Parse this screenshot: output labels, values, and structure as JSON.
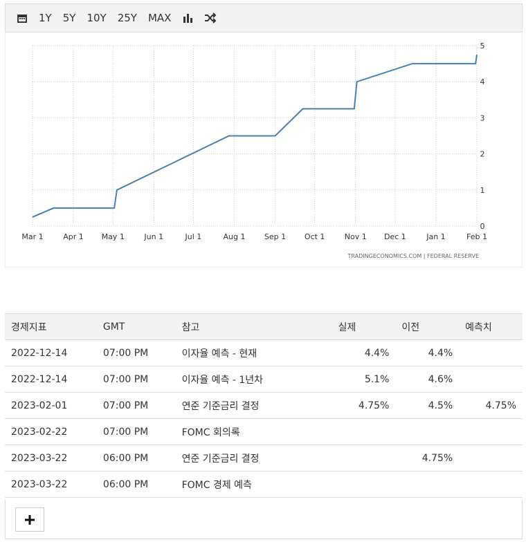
{
  "toolbar": {
    "ranges": [
      "1Y",
      "5Y",
      "10Y",
      "25Y",
      "MAX"
    ]
  },
  "chart_data": {
    "type": "line",
    "color": "#4a7fb0",
    "x": [
      0,
      16,
      62,
      64,
      149,
      184,
      205,
      244,
      246,
      288,
      336,
      337
    ],
    "values": [
      0.25,
      0.5,
      0.5,
      1.0,
      2.5,
      2.5,
      3.25,
      3.25,
      4.0,
      4.5,
      4.5,
      4.75
    ],
    "xlim": [
      0,
      337
    ],
    "xticks": [
      {
        "value": 0,
        "label": "Mar 1"
      },
      {
        "value": 31,
        "label": "Apr 1"
      },
      {
        "value": 61,
        "label": "May 1"
      },
      {
        "value": 92,
        "label": "Jun 1"
      },
      {
        "value": 122,
        "label": "Jul 1"
      },
      {
        "value": 153,
        "label": "Aug 1"
      },
      {
        "value": 184,
        "label": "Sep 1"
      },
      {
        "value": 214,
        "label": "Oct 1"
      },
      {
        "value": 245,
        "label": "Nov 1"
      },
      {
        "value": 275,
        "label": "Dec 1"
      },
      {
        "value": 306,
        "label": "Jan 1"
      },
      {
        "value": 337,
        "label": "Feb 1"
      }
    ],
    "ylim": [
      0,
      5
    ],
    "yticks": [
      0,
      1,
      2,
      3,
      4,
      5
    ],
    "grid": true,
    "source": "TRADINGECONOMICS.COM  |  FEDERAL RESERVE"
  },
  "table": {
    "header": [
      "경제지표",
      "GMT",
      "참고",
      "실제",
      "이전",
      "예측치"
    ],
    "rows": [
      [
        "2022-12-14",
        "07:00 PM",
        "이자율 예측 - 현재",
        "4.4%",
        "4.4%",
        null
      ],
      [
        "2022-12-14",
        "07:00 PM",
        "이자율 예측 - 1년차",
        "5.1%",
        "4.6%",
        null
      ],
      [
        "2023-02-01",
        "07:00 PM",
        "연준 기준금리 결정",
        "4.75%",
        "4.5%",
        "4.75%"
      ],
      [
        "2023-02-22",
        "07:00 PM",
        "FOMC 회의록",
        null,
        null,
        null
      ],
      [
        "2023-03-22",
        "06:00 PM",
        "연준 기준금리 결정",
        null,
        "4.75%",
        null
      ],
      [
        "2023-03-22",
        "06:00 PM",
        "FOMC 경제 예측",
        null,
        null,
        null
      ]
    ]
  }
}
